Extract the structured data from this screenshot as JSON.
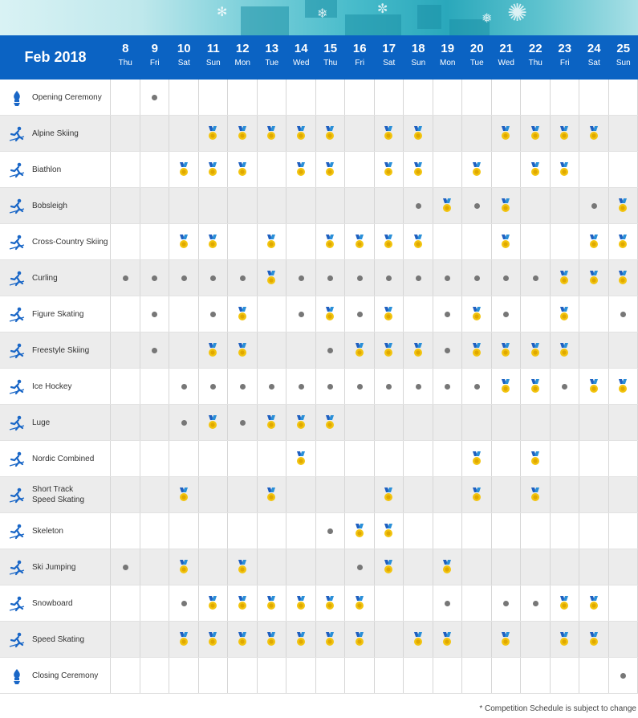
{
  "banner": {
    "decoration": "snowflake-pattern"
  },
  "header": {
    "month": "Feb 2018"
  },
  "days": [
    {
      "n": "8",
      "w": "Thu"
    },
    {
      "n": "9",
      "w": "Fri"
    },
    {
      "n": "10",
      "w": "Sat"
    },
    {
      "n": "11",
      "w": "Sun"
    },
    {
      "n": "12",
      "w": "Mon"
    },
    {
      "n": "13",
      "w": "Tue"
    },
    {
      "n": "14",
      "w": "Wed"
    },
    {
      "n": "15",
      "w": "Thu"
    },
    {
      "n": "16",
      "w": "Fri"
    },
    {
      "n": "17",
      "w": "Sat"
    },
    {
      "n": "18",
      "w": "Sun"
    },
    {
      "n": "19",
      "w": "Mon"
    },
    {
      "n": "20",
      "w": "Tue"
    },
    {
      "n": "21",
      "w": "Wed"
    },
    {
      "n": "22",
      "w": "Thu"
    },
    {
      "n": "23",
      "w": "Fri"
    },
    {
      "n": "24",
      "w": "Sat"
    },
    {
      "n": "25",
      "w": "Sun"
    }
  ],
  "legend_codes": {
    "0": "no-event",
    "1": "competition",
    "2": "medal-event"
  },
  "colors": {
    "header": "#0b63c3",
    "dot": "#777777",
    "medal_gold": "#f2c40f",
    "ribbon_blue": "#1f5fc0",
    "icon": "#1a67c7"
  },
  "sports": [
    {
      "label": "Opening Ceremony",
      "icon": "torch-icon",
      "schedule": [
        0,
        1,
        0,
        0,
        0,
        0,
        0,
        0,
        0,
        0,
        0,
        0,
        0,
        0,
        0,
        0,
        0,
        0
      ]
    },
    {
      "label": "Alpine Skiing",
      "icon": "alpine-skiing-icon",
      "schedule": [
        0,
        0,
        0,
        2,
        2,
        2,
        2,
        2,
        0,
        2,
        2,
        0,
        0,
        2,
        2,
        2,
        2,
        0
      ]
    },
    {
      "label": "Biathlon",
      "icon": "biathlon-icon",
      "schedule": [
        0,
        0,
        2,
        2,
        2,
        0,
        2,
        2,
        0,
        2,
        2,
        0,
        2,
        0,
        2,
        2,
        0,
        0
      ]
    },
    {
      "label": "Bobsleigh",
      "icon": "bobsleigh-icon",
      "schedule": [
        0,
        0,
        0,
        0,
        0,
        0,
        0,
        0,
        0,
        0,
        1,
        2,
        1,
        2,
        0,
        0,
        1,
        2
      ]
    },
    {
      "label": "Cross-Country Skiing",
      "icon": "cross-country-skiing-icon",
      "schedule": [
        0,
        0,
        2,
        2,
        0,
        2,
        0,
        2,
        2,
        2,
        2,
        0,
        0,
        2,
        0,
        0,
        2,
        2
      ]
    },
    {
      "label": "Curling",
      "icon": "curling-icon",
      "schedule": [
        1,
        1,
        1,
        1,
        1,
        2,
        1,
        1,
        1,
        1,
        1,
        1,
        1,
        1,
        1,
        2,
        2,
        2
      ]
    },
    {
      "label": "Figure Skating",
      "icon": "figure-skating-icon",
      "schedule": [
        0,
        1,
        0,
        1,
        2,
        0,
        1,
        2,
        1,
        2,
        0,
        1,
        2,
        1,
        0,
        2,
        0,
        1
      ]
    },
    {
      "label": "Freestyle Skiing",
      "icon": "freestyle-skiing-icon",
      "schedule": [
        0,
        1,
        0,
        2,
        2,
        0,
        0,
        1,
        2,
        2,
        2,
        1,
        2,
        2,
        2,
        2,
        0,
        0
      ]
    },
    {
      "label": "Ice Hockey",
      "icon": "ice-hockey-icon",
      "schedule": [
        0,
        0,
        1,
        1,
        1,
        1,
        1,
        1,
        1,
        1,
        1,
        1,
        1,
        2,
        2,
        1,
        2,
        2
      ]
    },
    {
      "label": "Luge",
      "icon": "luge-icon",
      "schedule": [
        0,
        0,
        1,
        2,
        1,
        2,
        2,
        2,
        0,
        0,
        0,
        0,
        0,
        0,
        0,
        0,
        0,
        0
      ]
    },
    {
      "label": "Nordic Combined",
      "icon": "nordic-combined-icon",
      "schedule": [
        0,
        0,
        0,
        0,
        0,
        0,
        2,
        0,
        0,
        0,
        0,
        0,
        2,
        0,
        2,
        0,
        0,
        0
      ]
    },
    {
      "label": "Short Track\nSpeed Skating",
      "icon": "short-track-icon",
      "schedule": [
        0,
        0,
        2,
        0,
        0,
        2,
        0,
        0,
        0,
        2,
        0,
        0,
        2,
        0,
        2,
        0,
        0,
        0
      ]
    },
    {
      "label": "Skeleton",
      "icon": "skeleton-icon",
      "schedule": [
        0,
        0,
        0,
        0,
        0,
        0,
        0,
        1,
        2,
        2,
        0,
        0,
        0,
        0,
        0,
        0,
        0,
        0
      ]
    },
    {
      "label": "Ski Jumping",
      "icon": "ski-jumping-icon",
      "schedule": [
        1,
        0,
        2,
        0,
        2,
        0,
        0,
        0,
        1,
        2,
        0,
        2,
        0,
        0,
        0,
        0,
        0,
        0
      ]
    },
    {
      "label": "Snowboard",
      "icon": "snowboard-icon",
      "schedule": [
        0,
        0,
        1,
        2,
        2,
        2,
        2,
        2,
        2,
        0,
        0,
        1,
        0,
        1,
        1,
        2,
        2,
        0
      ]
    },
    {
      "label": "Speed Skating",
      "icon": "speed-skating-icon",
      "schedule": [
        0,
        0,
        2,
        2,
        2,
        2,
        2,
        2,
        2,
        0,
        2,
        2,
        0,
        2,
        0,
        2,
        2,
        0
      ]
    },
    {
      "label": "Closing Ceremony",
      "icon": "torch-icon",
      "schedule": [
        0,
        0,
        0,
        0,
        0,
        0,
        0,
        0,
        0,
        0,
        0,
        0,
        0,
        0,
        0,
        0,
        0,
        1
      ]
    }
  ],
  "footnote": "* Competition Schedule is subject to change"
}
